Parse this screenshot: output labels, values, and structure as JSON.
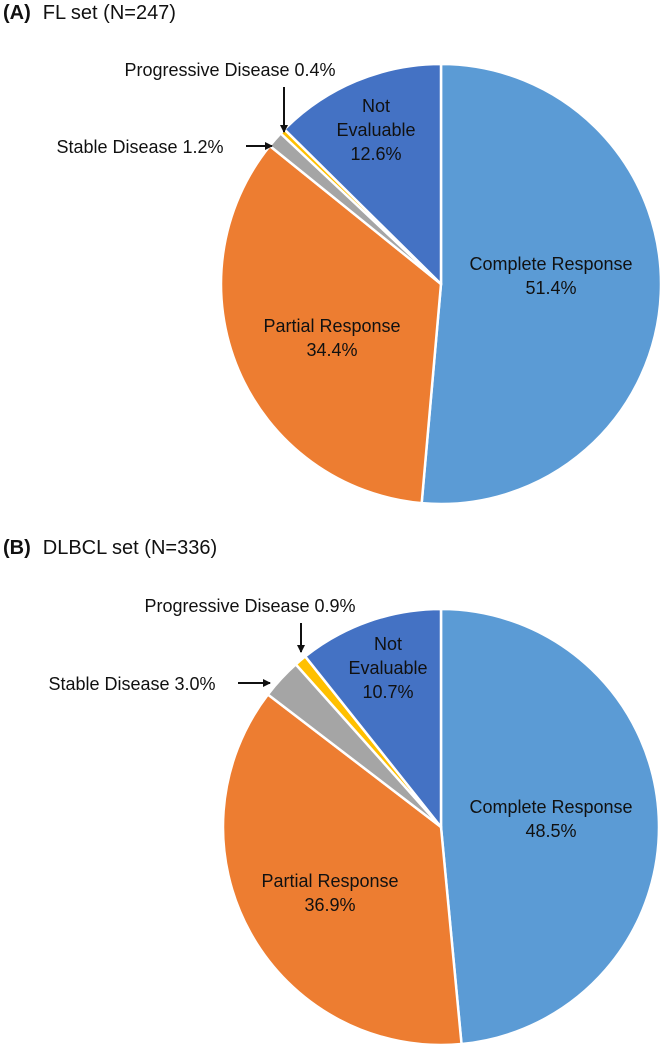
{
  "chart_data": [
    {
      "type": "pie",
      "panel": "(A)",
      "title": "FL set (N=247)",
      "slices": [
        {
          "name": "Complete Response",
          "value": 51.4,
          "label": "51.4%",
          "color": "#5B9BD5"
        },
        {
          "name": "Partial Response",
          "value": 34.4,
          "label": "34.4%",
          "color": "#ED7D31"
        },
        {
          "name": "Stable Disease",
          "value": 1.2,
          "label": "1.2%",
          "color": "#A5A5A5"
        },
        {
          "name": "Progressive Disease",
          "value": 0.4,
          "label": "0.4%",
          "color": "#FFC000"
        },
        {
          "name": "Not Evaluable",
          "value": 12.6,
          "label": "12.6%",
          "color": "#4472C4"
        }
      ]
    },
    {
      "type": "pie",
      "panel": "(B)",
      "title": "DLBCL set (N=336)",
      "slices": [
        {
          "name": "Complete Response",
          "value": 48.5,
          "label": "48.5%",
          "color": "#5B9BD5"
        },
        {
          "name": "Partial Response",
          "value": 36.9,
          "label": "36.9%",
          "color": "#ED7D31"
        },
        {
          "name": "Stable Disease",
          "value": 3.0,
          "label": "3.0%",
          "color": "#A5A5A5"
        },
        {
          "name": "Progressive Disease",
          "value": 0.9,
          "label": "0.9%",
          "color": "#FFC000"
        },
        {
          "name": "Not Evaluable",
          "value": 10.7,
          "label": "10.7%",
          "color": "#4472C4"
        }
      ]
    }
  ]
}
